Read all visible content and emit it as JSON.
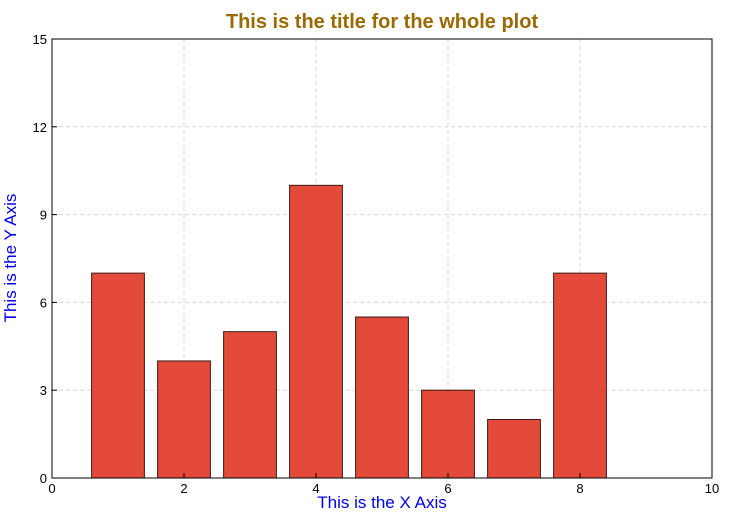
{
  "chart_data": {
    "type": "bar",
    "title": "This is the title for the whole plot",
    "xlabel": "This is the X Axis",
    "ylabel": "This is the Y Axis",
    "x": [
      1,
      2,
      3,
      4,
      5,
      6,
      7,
      8
    ],
    "values": [
      7,
      4,
      5,
      10,
      5.5,
      3,
      2,
      7
    ],
    "bar_width": 0.8,
    "xlim": [
      0,
      10
    ],
    "ylim": [
      0,
      15
    ],
    "xticks": [
      0,
      2,
      4,
      6,
      8,
      10
    ],
    "yticks": [
      0,
      3,
      6,
      9,
      12,
      15
    ],
    "grid": true
  },
  "colors": {
    "bar_fill": "#e34a3a",
    "bar_stroke": "#3a1a14",
    "title": "#9a6a00",
    "axis_label": "#0000ee",
    "grid": "#d6d6d6"
  }
}
